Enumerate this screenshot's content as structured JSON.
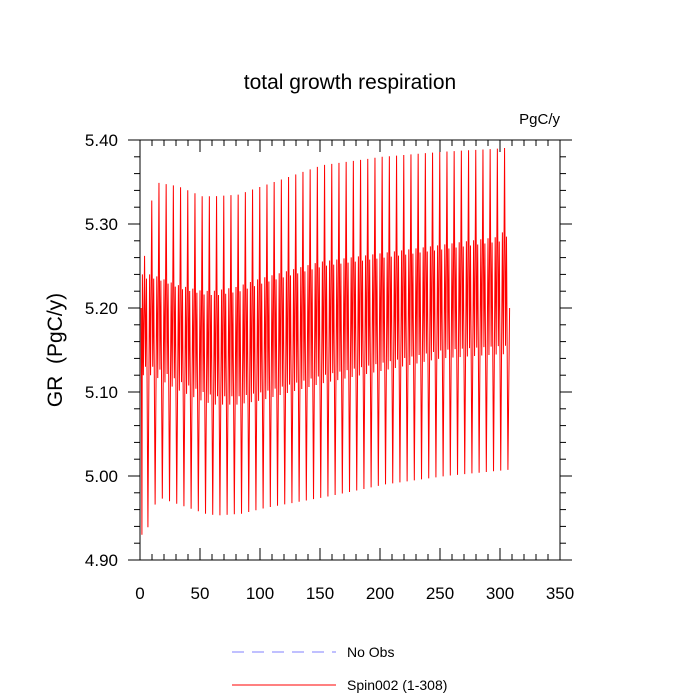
{
  "chart_data": {
    "type": "line",
    "title": "total growth respiration",
    "units": "PgC/y",
    "ylabel": "GR  (PgC/y)",
    "xlabel": "",
    "xlim": [
      0,
      350
    ],
    "ylim": [
      4.9,
      5.4
    ],
    "x_ticks": [
      0,
      50,
      100,
      150,
      200,
      250,
      300,
      350
    ],
    "x_tick_labels": [
      "0",
      "50",
      "100",
      "150",
      "200",
      "250",
      "300",
      "350"
    ],
    "y_ticks": [
      4.9,
      5.0,
      5.1,
      5.2,
      5.3,
      5.4
    ],
    "y_tick_labels": [
      "4.90",
      "5.00",
      "5.10",
      "5.20",
      "5.30",
      "5.40"
    ],
    "grid": false,
    "legend_position": "bottom-center",
    "series": [
      {
        "name": "No Obs",
        "color": "#8080ff",
        "style": "dashed",
        "values": []
      },
      {
        "name": "Spin002 (1-308)",
        "color": "#ff0000",
        "style": "solid",
        "description": "monthly seasonal cycle, 308 years",
        "n_years": 308,
        "cycle_period_years": 6,
        "first_year_min": 4.93,
        "last_value": 5.2,
        "envelope_years": [
          0,
          10,
          30,
          50,
          60,
          80,
          100,
          150,
          200,
          250,
          300,
          308
        ],
        "envelope_max": [
          5.24,
          5.35,
          5.345,
          5.333,
          5.333,
          5.335,
          5.345,
          5.37,
          5.38,
          5.386,
          5.39,
          5.392
        ],
        "envelope_min": [
          4.93,
          4.975,
          4.965,
          4.955,
          4.953,
          4.955,
          4.962,
          4.975,
          4.99,
          5.0,
          5.007,
          5.008
        ],
        "inner_max": [
          5.24,
          5.24,
          5.228,
          5.221,
          5.22,
          5.225,
          5.235,
          5.255,
          5.265,
          5.275,
          5.285,
          5.305
        ],
        "inner_min": [
          5.12,
          5.12,
          5.103,
          5.09,
          5.085,
          5.085,
          5.09,
          5.11,
          5.125,
          5.14,
          5.145,
          5.145
        ]
      }
    ]
  }
}
